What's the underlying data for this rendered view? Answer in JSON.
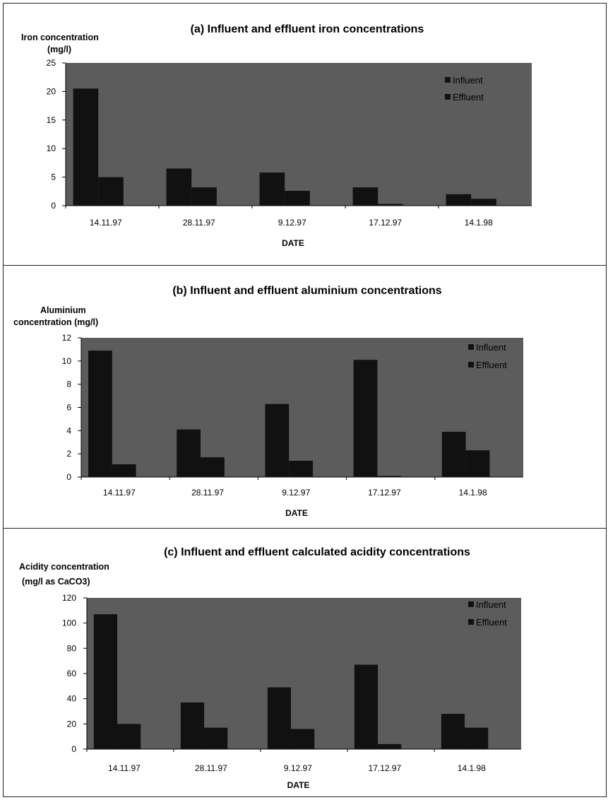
{
  "chart_data": [
    {
      "type": "bar",
      "title": "(a) Influent and effluent iron concentrations",
      "ylabel_lines": [
        "Iron concentration",
        "(mg/l)"
      ],
      "xlabel": "DATE",
      "categories": [
        "14.11.97",
        "28.11.97",
        "9.12.97",
        "17.12.97",
        "14.1.98"
      ],
      "ylim": [
        0,
        25
      ],
      "yticks": [
        "0",
        "5",
        "10",
        "15",
        "20",
        "25"
      ],
      "legend_position": "top-right",
      "series": [
        {
          "name": "Influent",
          "values": [
            20.5,
            6.5,
            5.8,
            3.2,
            2.0
          ]
        },
        {
          "name": "Effluent",
          "values": [
            5.0,
            3.2,
            2.6,
            0.3,
            1.2
          ]
        }
      ]
    },
    {
      "type": "bar",
      "title": "(b) Influent and effluent aluminium concentrations",
      "ylabel_lines": [
        "Aluminium",
        "concentration (mg/l)"
      ],
      "xlabel": "DATE",
      "categories": [
        "14.11.97",
        "28.11.97",
        "9.12.97",
        "17.12.97",
        "14.1.98"
      ],
      "ylim": [
        0,
        12
      ],
      "yticks": [
        "0",
        "2",
        "4",
        "6",
        "8",
        "10",
        "12"
      ],
      "legend_position": "top-right",
      "series": [
        {
          "name": "Influent",
          "values": [
            10.9,
            4.1,
            6.3,
            10.1,
            3.9
          ]
        },
        {
          "name": "Effluent",
          "values": [
            1.1,
            1.7,
            1.4,
            0.1,
            2.3
          ]
        }
      ]
    },
    {
      "type": "bar",
      "title": "(c) Influent and effluent calculated acidity concentrations",
      "ylabel_lines": [
        "Acidity concentration",
        "(mg/l as CaCO3)"
      ],
      "xlabel": "DATE",
      "categories": [
        "14.11.97",
        "28.11.97",
        "9.12.97",
        "17.12.97",
        "14.1.98"
      ],
      "ylim": [
        0,
        120
      ],
      "yticks": [
        "0",
        "20",
        "40",
        "60",
        "80",
        "100",
        "120"
      ],
      "legend_position": "top-right",
      "series": [
        {
          "name": "Influent",
          "values": [
            107,
            37,
            49,
            67,
            28
          ]
        },
        {
          "name": "Effluent",
          "values": [
            20,
            17,
            16,
            4,
            17
          ]
        }
      ]
    }
  ],
  "colors": {
    "plot_bg": "#5c5c5c",
    "bar": "#111111",
    "frame": "#222222"
  }
}
